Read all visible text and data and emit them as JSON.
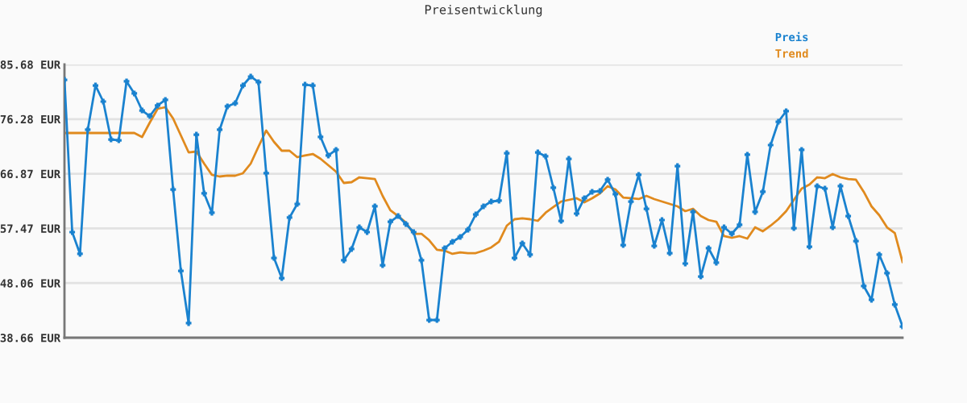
{
  "chart_data": {
    "type": "line",
    "title": "Preisentwicklung",
    "categories": [
      null,
      null,
      null,
      null,
      null,
      null,
      null,
      null,
      null,
      null,
      null,
      null,
      null,
      null,
      null,
      null,
      null,
      null,
      null,
      null,
      null,
      null,
      null,
      null,
      null,
      null,
      null,
      null,
      null,
      null,
      null,
      null,
      null,
      null,
      null,
      null,
      null,
      null,
      null,
      null,
      null,
      null,
      null,
      null,
      null,
      null,
      null,
      null,
      null,
      null,
      null,
      null,
      null,
      null,
      null,
      null,
      null,
      null,
      null,
      null,
      null,
      null,
      null,
      null,
      null,
      null,
      null,
      null,
      null,
      null,
      null,
      null,
      null,
      null,
      null,
      null,
      null,
      null,
      null,
      null,
      null,
      null,
      null,
      null,
      null,
      null,
      null,
      null,
      null,
      null,
      null,
      null,
      null,
      null,
      null,
      null,
      null,
      null,
      null,
      null,
      null,
      null,
      null,
      null,
      null,
      null,
      null,
      null,
      null
    ],
    "series": [
      {
        "name": "Preis",
        "color": "#1a82cf",
        "marker": "cross",
        "values": [
          83.04,
          56.83,
          53.09,
          74.45,
          82.07,
          79.3,
          72.78,
          72.64,
          82.77,
          80.69,
          77.77,
          76.8,
          78.61,
          79.58,
          64.18,
          50.17,
          41.16,
          73.61,
          63.49,
          60.16,
          74.45,
          78.47,
          79.02,
          82.07,
          83.6,
          82.63,
          66.96,
          52.39,
          48.92,
          59.33,
          61.68,
          82.21,
          82.07,
          73.2,
          70.01,
          70.98,
          51.98,
          53.92,
          57.66,
          56.83,
          61.27,
          51.14,
          58.63,
          59.6,
          58.22,
          56.83,
          51.98,
          41.71,
          41.71,
          54.06,
          55.17,
          56.0,
          57.25,
          59.88,
          61.27,
          62.1,
          62.24,
          70.42,
          52.39,
          54.89,
          52.95,
          70.56,
          69.87,
          64.46,
          58.77,
          69.45,
          60.02,
          62.66,
          63.77,
          63.9,
          65.85,
          63.35,
          54.61,
          62.1,
          66.68,
          60.85,
          54.47,
          58.91,
          53.22,
          68.2,
          51.42,
          60.3,
          49.2,
          54.06,
          51.56,
          57.66,
          56.55,
          58.08,
          70.15,
          60.3,
          63.77,
          71.81,
          75.83,
          77.64,
          57.52,
          70.98,
          54.33,
          64.74,
          64.32,
          57.66,
          64.74,
          59.6,
          55.3,
          47.54,
          45.18,
          52.95,
          49.76,
          44.35,
          40.6
        ]
      },
      {
        "name": "Trend",
        "color": "#e08a1e",
        "marker": "none",
        "values": [
          73.89,
          73.89,
          73.89,
          73.89,
          73.89,
          73.89,
          73.89,
          73.89,
          73.89,
          73.89,
          73.2,
          75.69,
          78.05,
          78.33,
          76.39,
          73.47,
          70.56,
          70.7,
          68.62,
          66.68,
          66.4,
          66.54,
          66.54,
          66.96,
          68.62,
          71.53,
          74.31,
          72.36,
          70.84,
          70.84,
          69.73,
          70.01,
          70.28,
          69.45,
          68.34,
          67.23,
          65.29,
          65.43,
          66.26,
          66.12,
          65.98,
          63.07,
          60.58,
          59.6,
          58.49,
          56.55,
          56.55,
          55.44,
          53.78,
          53.64,
          53.09,
          53.36,
          53.22,
          53.22,
          53.64,
          54.2,
          55.17,
          57.94,
          59.05,
          59.19,
          59.05,
          58.77,
          60.16,
          61.13,
          62.1,
          62.38,
          62.66,
          61.96,
          62.66,
          63.49,
          64.74,
          64.18,
          62.79,
          62.66,
          62.52,
          63.07,
          62.52,
          62.1,
          61.68,
          61.27,
          60.44,
          60.85,
          59.6,
          58.91,
          58.63,
          56.14,
          55.86,
          56.14,
          55.72,
          57.66,
          56.97,
          57.94,
          59.05,
          60.44,
          62.38,
          64.32,
          65.01,
          66.26,
          66.12,
          66.82,
          66.26,
          65.98,
          65.85,
          63.77,
          61.27,
          59.74,
          57.66,
          56.69,
          51.7
        ]
      }
    ],
    "ylim": [
      38.66,
      85.68
    ],
    "yticks": [
      {
        "value": 38.66,
        "label": "38.66 EUR"
      },
      {
        "value": 48.06,
        "label": "48.06 EUR"
      },
      {
        "value": 57.47,
        "label": "57.47 EUR"
      },
      {
        "value": 66.87,
        "label": "66.87 EUR"
      },
      {
        "value": 76.28,
        "label": "76.28 EUR"
      },
      {
        "value": 85.68,
        "label": "85.68 EUR"
      }
    ],
    "grid": "y",
    "legend": "top right",
    "tick_labels": "y",
    "line_style": "solid"
  }
}
